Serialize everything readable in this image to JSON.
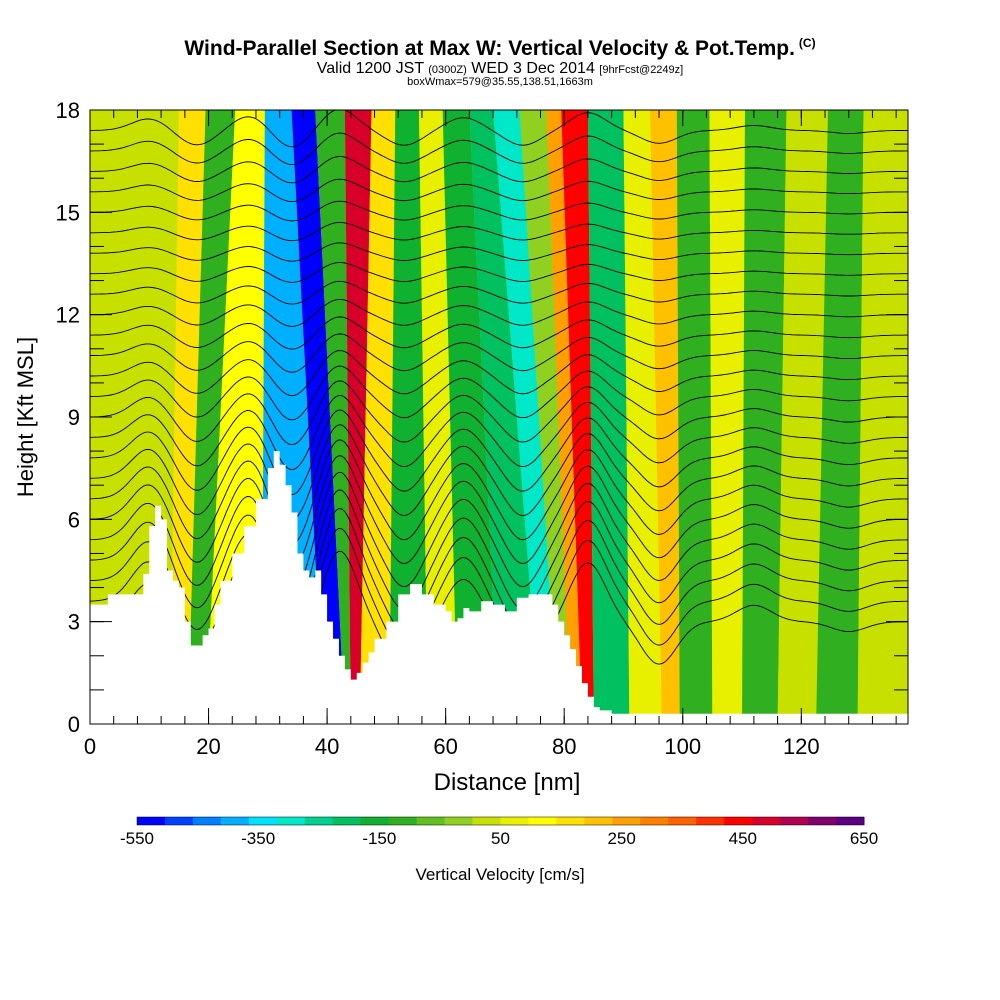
{
  "title": {
    "main": "Wind-Parallel Section at Max W: Vertical Velocity & Pot.Temp.",
    "copyright": "(C)",
    "valid_prefix": "Valid 1200 JST",
    "valid_utc": "(0300Z)",
    "valid_date": "WED 3 Dec 2014",
    "forecast": "[9hrFcst@2249z]",
    "box": "boxWmax=579@35.55,138.51,1663m"
  },
  "chart_data": {
    "type": "heatmap",
    "xlabel": "Distance [nm]",
    "ylabel": "Height [Kft MSL]",
    "xlim": [
      0,
      138
    ],
    "ylim": [
      0,
      18
    ],
    "x_ticks": [
      0,
      20,
      40,
      60,
      80,
      100,
      120
    ],
    "y_ticks": [
      0,
      3,
      6,
      9,
      12,
      15,
      18
    ],
    "grid": false,
    "terrain": {
      "x": [
        0,
        3,
        6,
        9,
        10,
        11,
        12,
        13,
        14,
        15,
        16,
        17,
        18,
        19,
        20,
        21,
        22,
        24,
        26,
        28,
        30,
        31,
        32,
        33,
        34,
        35,
        36,
        37,
        38,
        39,
        40,
        41,
        42,
        43,
        44,
        45,
        46,
        47,
        48,
        50,
        52,
        54,
        55,
        56,
        58,
        60,
        61,
        62,
        63,
        64,
        66,
        68,
        70,
        72,
        74,
        76,
        78,
        79,
        80,
        81,
        82,
        83,
        84,
        85,
        86,
        88,
        92,
        100,
        110,
        120,
        130,
        138
      ],
      "height": [
        3.5,
        3.8,
        3.8,
        4.4,
        5.8,
        6.4,
        6.0,
        4.5,
        4.2,
        4.0,
        3.0,
        2.3,
        2.3,
        2.6,
        2.8,
        3.5,
        4.2,
        5.0,
        5.8,
        6.6,
        7.5,
        8.0,
        7.6,
        7.0,
        6.2,
        5.0,
        4.5,
        4.3,
        4.5,
        3.8,
        3.0,
        2.5,
        2.0,
        1.6,
        1.3,
        1.5,
        1.8,
        2.1,
        2.5,
        3.0,
        3.8,
        4.1,
        4.1,
        3.8,
        3.5,
        3.3,
        3.0,
        3.1,
        3.4,
        3.3,
        3.6,
        3.5,
        3.3,
        3.7,
        3.8,
        3.8,
        3.5,
        3.0,
        2.6,
        2.2,
        1.7,
        1.2,
        0.8,
        0.5,
        0.4,
        0.3,
        0.3,
        0.3,
        0.3,
        0.3,
        0.3,
        0.3
      ]
    },
    "w_field": {
      "units": "cm/s",
      "bands": [
        {
          "x_top": 13,
          "x_bottom": 12,
          "value": 60
        },
        {
          "x_top": 17,
          "x_bottom": 15,
          "value": 200
        },
        {
          "x_top": 22,
          "x_bottom": 18,
          "value": -100
        },
        {
          "x_top": 27,
          "x_bottom": 21,
          "value": 150
        },
        {
          "x_top": 32,
          "x_bottom": 37,
          "value": -400
        },
        {
          "x_top": 36,
          "x_bottom": 42,
          "value": -550
        },
        {
          "x_top": 40,
          "x_bottom": 44,
          "value": -80
        },
        {
          "x_top": 46,
          "x_bottom": 44,
          "value": 550
        },
        {
          "x_top": 49,
          "x_bottom": 47,
          "value": 200
        },
        {
          "x_top": 54,
          "x_bottom": 54,
          "value": -120
        },
        {
          "x_top": 57,
          "x_bottom": 60,
          "value": 100
        },
        {
          "x_top": 62,
          "x_bottom": 64,
          "value": -150
        },
        {
          "x_top": 66,
          "x_bottom": 74,
          "value": -200
        },
        {
          "x_top": 70,
          "x_bottom": 78,
          "value": -300
        },
        {
          "x_top": 75,
          "x_bottom": 80,
          "value": 0
        },
        {
          "x_top": 79,
          "x_bottom": 82,
          "value": 300
        },
        {
          "x_top": 80,
          "x_bottom": 84,
          "value": 500
        },
        {
          "x_top": 88,
          "x_bottom": 86,
          "value": -180
        },
        {
          "x_top": 92,
          "x_bottom": 96,
          "value": 100
        },
        {
          "x_top": 97,
          "x_bottom": 97,
          "value": 250
        },
        {
          "x_top": 101,
          "x_bottom": 102,
          "value": -100
        },
        {
          "x_top": 108,
          "x_bottom": 108,
          "value": 100
        },
        {
          "x_top": 113,
          "x_bottom": 112,
          "value": -60
        },
        {
          "x_top": 122,
          "x_bottom": 120,
          "value": 80
        },
        {
          "x_top": 127,
          "x_bottom": 125,
          "value": -60
        },
        {
          "x_top": 134,
          "x_bottom": 134,
          "value": 60
        }
      ]
    },
    "theta_contours": {
      "levels_kft": [
        3.0,
        3.6,
        4.2,
        4.8,
        5.4,
        6.0,
        6.6,
        7.2,
        7.8,
        8.4,
        9.0,
        9.6,
        10.2,
        10.8,
        11.4,
        12.0,
        12.6,
        13.2,
        13.8,
        14.4,
        15.0,
        15.6,
        16.2,
        16.8,
        17.4
      ],
      "wave_x": [
        10,
        18,
        27,
        34,
        42,
        53,
        63,
        73,
        84,
        96,
        112,
        128
      ],
      "wave_sign": [
        1,
        -1,
        1,
        -1,
        1,
        -1,
        1,
        -1,
        1,
        -1,
        1,
        -1
      ],
      "wave_amp_kft": [
        1.2,
        1.5,
        1.5,
        1.8,
        2.2,
        1.5,
        1.3,
        1.5,
        1.8,
        1.3,
        0.5,
        0.3
      ]
    },
    "colorbar": {
      "label": "Vertical Velocity [cm/s]",
      "min": -550,
      "max": 650,
      "step": 50,
      "tick_labels": [
        "-550",
        "-350",
        "-150",
        "50",
        "250",
        "450",
        "650"
      ],
      "colors": [
        "#0000ff",
        "#0040ff",
        "#0080ff",
        "#00b0ff",
        "#00e0ff",
        "#00e8c8",
        "#00d090",
        "#00c060",
        "#10b030",
        "#30b020",
        "#60c020",
        "#90d020",
        "#c8e000",
        "#e8f000",
        "#ffff00",
        "#ffe000",
        "#ffc000",
        "#ffa000",
        "#ff8000",
        "#ff6000",
        "#ff3000",
        "#ff0000",
        "#d8002a",
        "#b00050",
        "#800070",
        "#5a0080"
      ]
    }
  }
}
